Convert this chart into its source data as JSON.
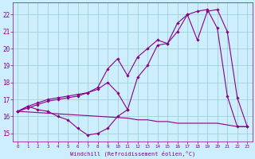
{
  "xlabel": "Windchill (Refroidissement éolien,°C)",
  "xlim": [
    -0.5,
    23.5
  ],
  "ylim": [
    14.5,
    22.7
  ],
  "yticks": [
    15,
    16,
    17,
    18,
    19,
    20,
    21,
    22
  ],
  "xticks": [
    0,
    1,
    2,
    3,
    4,
    5,
    6,
    7,
    8,
    9,
    10,
    11,
    12,
    13,
    14,
    15,
    16,
    17,
    18,
    19,
    20,
    21,
    22,
    23
  ],
  "background_color": "#cceeff",
  "line_color": "#880088",
  "grid_color": "#99cccc",
  "lines": [
    {
      "x": [
        0,
        1,
        2,
        3,
        4,
        5,
        6,
        7,
        8,
        9,
        10,
        11
      ],
      "y": [
        16.3,
        16.6,
        16.4,
        16.3,
        16.0,
        15.8,
        15.3,
        14.9,
        15.0,
        15.3,
        16.0,
        16.4
      ],
      "marker": true
    },
    {
      "x": [
        0,
        11,
        12,
        13,
        14,
        15,
        16,
        17,
        18,
        19,
        20,
        21,
        22,
        23
      ],
      "y": [
        16.3,
        15.9,
        15.8,
        15.8,
        15.7,
        15.7,
        15.6,
        15.6,
        15.6,
        15.6,
        15.6,
        15.5,
        15.4,
        15.4
      ],
      "marker": false
    },
    {
      "x": [
        0,
        1,
        2,
        3,
        4,
        5,
        6,
        7,
        8,
        9,
        10,
        11,
        12,
        13,
        14,
        15,
        16,
        17,
        18,
        19,
        20,
        21,
        22,
        23
      ],
      "y": [
        16.3,
        16.6,
        16.8,
        17.0,
        17.1,
        17.2,
        17.3,
        17.4,
        17.6,
        18.0,
        17.4,
        16.4,
        18.3,
        19.0,
        20.2,
        20.3,
        21.5,
        22.0,
        20.5,
        22.2,
        22.3,
        21.0,
        17.1,
        15.4
      ],
      "marker": true
    },
    {
      "x": [
        0,
        1,
        2,
        3,
        4,
        5,
        6,
        7,
        8,
        9,
        10,
        11,
        12,
        13,
        14,
        15,
        16,
        17,
        18,
        19,
        20,
        21,
        22,
        23
      ],
      "y": [
        16.3,
        16.5,
        16.7,
        16.9,
        17.0,
        17.1,
        17.2,
        17.4,
        17.7,
        18.8,
        19.4,
        18.4,
        19.5,
        20.0,
        20.5,
        20.3,
        21.0,
        22.0,
        22.2,
        22.3,
        21.2,
        17.2,
        15.4,
        15.4
      ],
      "marker": true
    }
  ]
}
